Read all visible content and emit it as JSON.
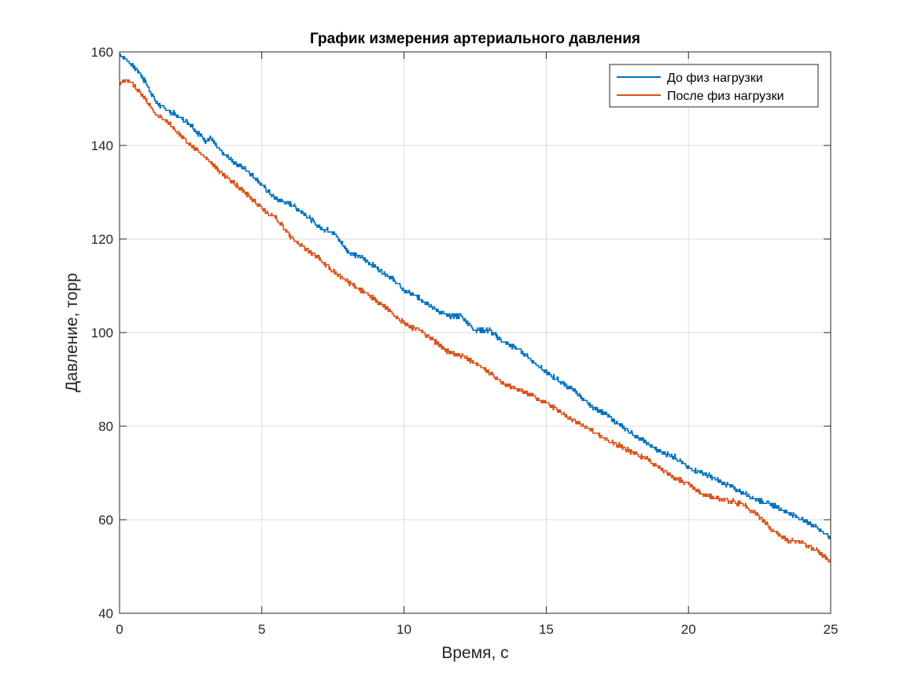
{
  "chart_data": {
    "type": "line",
    "title": "График измерения артериального давления",
    "xlabel": "Время, с",
    "ylabel": "Давление, торр",
    "xlim": [
      0,
      25
    ],
    "ylim": [
      40,
      160
    ],
    "xticks": [
      0,
      5,
      10,
      15,
      20,
      25
    ],
    "yticks": [
      40,
      60,
      80,
      100,
      120,
      140,
      160
    ],
    "grid": true,
    "legend_position": "top-right",
    "series": [
      {
        "name": "До физ нагрузки",
        "color": "#0072BD",
        "points": [
          [
            0,
            159.5
          ],
          [
            0.3,
            158.0
          ],
          [
            0.7,
            155.5
          ],
          [
            1.0,
            152.5
          ],
          [
            1.3,
            149.0
          ],
          [
            1.7,
            147.5
          ],
          [
            2.0,
            146.5
          ],
          [
            2.5,
            144.5
          ],
          [
            3.0,
            141.0
          ],
          [
            3.2,
            141.5
          ],
          [
            3.5,
            139.0
          ],
          [
            4.0,
            136.5
          ],
          [
            4.5,
            134.5
          ],
          [
            5.0,
            131.5
          ],
          [
            5.5,
            128.5
          ],
          [
            6.0,
            127.5
          ],
          [
            6.5,
            125.5
          ],
          [
            7.0,
            122.5
          ],
          [
            7.5,
            121.5
          ],
          [
            8.0,
            117.5
          ],
          [
            8.5,
            116.0
          ],
          [
            9.0,
            114.0
          ],
          [
            9.5,
            112.0
          ],
          [
            10.0,
            109.0
          ],
          [
            10.5,
            107.5
          ],
          [
            11.0,
            105.5
          ],
          [
            11.5,
            103.5
          ],
          [
            12.0,
            103.5
          ],
          [
            12.5,
            100.5
          ],
          [
            13.0,
            100.5
          ],
          [
            13.5,
            98.0
          ],
          [
            14.0,
            96.5
          ],
          [
            14.5,
            94.0
          ],
          [
            15.0,
            91.5
          ],
          [
            15.5,
            89.5
          ],
          [
            16.0,
            87.5
          ],
          [
            16.5,
            84.5
          ],
          [
            17.0,
            83.0
          ],
          [
            17.5,
            80.5
          ],
          [
            18.0,
            78.5
          ],
          [
            18.5,
            76.5
          ],
          [
            19.0,
            74.5
          ],
          [
            19.5,
            73.5
          ],
          [
            20.0,
            71.0
          ],
          [
            20.5,
            70.0
          ],
          [
            21.0,
            68.5
          ],
          [
            21.5,
            67.0
          ],
          [
            22.0,
            65.5
          ],
          [
            22.5,
            64.0
          ],
          [
            23.0,
            63.0
          ],
          [
            23.5,
            61.5
          ],
          [
            24.0,
            60.0
          ],
          [
            24.5,
            58.5
          ],
          [
            25.0,
            56.0
          ]
        ]
      },
      {
        "name": "После физ нагрузки",
        "color": "#D95319",
        "points": [
          [
            0,
            153.5
          ],
          [
            0.3,
            154.0
          ],
          [
            0.7,
            151.5
          ],
          [
            1.0,
            149.0
          ],
          [
            1.3,
            146.5
          ],
          [
            1.7,
            145.0
          ],
          [
            2.0,
            143.0
          ],
          [
            2.5,
            140.0
          ],
          [
            3.0,
            137.5
          ],
          [
            3.2,
            136.5
          ],
          [
            3.5,
            134.5
          ],
          [
            4.0,
            132.0
          ],
          [
            4.5,
            129.5
          ],
          [
            5.0,
            126.5
          ],
          [
            5.5,
            124.5
          ],
          [
            6.0,
            120.5
          ],
          [
            6.5,
            118.0
          ],
          [
            7.0,
            116.0
          ],
          [
            7.5,
            113.0
          ],
          [
            8.0,
            111.0
          ],
          [
            8.5,
            109.0
          ],
          [
            9.0,
            107.0
          ],
          [
            9.5,
            104.5
          ],
          [
            10.0,
            102.0
          ],
          [
            10.5,
            100.5
          ],
          [
            11.0,
            98.5
          ],
          [
            11.5,
            96.0
          ],
          [
            12.0,
            95.0
          ],
          [
            12.5,
            93.5
          ],
          [
            13.0,
            91.5
          ],
          [
            13.5,
            89.0
          ],
          [
            14.0,
            88.0
          ],
          [
            14.5,
            86.5
          ],
          [
            15.0,
            85.0
          ],
          [
            15.5,
            83.0
          ],
          [
            16.0,
            81.0
          ],
          [
            16.5,
            79.5
          ],
          [
            17.0,
            77.5
          ],
          [
            17.5,
            76.0
          ],
          [
            18.0,
            74.5
          ],
          [
            18.5,
            73.0
          ],
          [
            19.0,
            71.0
          ],
          [
            19.5,
            69.0
          ],
          [
            20.0,
            67.5
          ],
          [
            20.5,
            65.5
          ],
          [
            21.0,
            64.5
          ],
          [
            21.5,
            64.0
          ],
          [
            22.0,
            63.0
          ],
          [
            22.5,
            60.5
          ],
          [
            23.0,
            57.5
          ],
          [
            23.5,
            55.5
          ],
          [
            24.0,
            55.0
          ],
          [
            24.5,
            53.5
          ],
          [
            25.0,
            51.0
          ]
        ]
      }
    ]
  }
}
